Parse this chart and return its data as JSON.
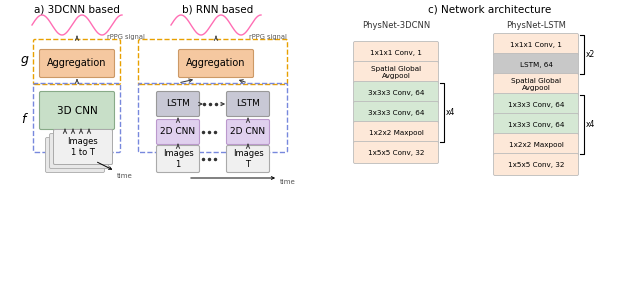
{
  "title_a": "a) 3DCNN based",
  "title_b": "b) RNN based",
  "title_c": "c) Network architecture",
  "color_aggregation": "#f5c8a0",
  "color_aggregation_edge": "#cc9966",
  "color_3dcnn": "#c8dfc8",
  "color_3dcnn_edge": "#88aa88",
  "color_lstm_box": "#c8c8d5",
  "color_2dcnn": "#e0d0ee",
  "color_2dcnn_edge": "#bb99cc",
  "color_images": "#f0f0f0",
  "color_images_edge": "#aaaaaa",
  "color_wave": "#ff6eb4",
  "color_g_dashed": "#E8A000",
  "color_f_dashed": "#7788dd",
  "color_layer_pink": "#fde8d8",
  "color_layer_green": "#d5e8d4",
  "color_layer_gray": "#c8c8c8",
  "bg_color": "#ffffff",
  "layers_3dcnn": [
    {
      "text": "1x1x1 Conv, 1",
      "color": "#fde8d8"
    },
    {
      "text": "Spatial Global\nAvgpool",
      "color": "#fde8d8"
    },
    {
      "text": "3x3x3 Conv, 64",
      "color": "#d5e8d4"
    },
    {
      "text": "3x3x3 Conv, 64",
      "color": "#d5e8d4"
    },
    {
      "text": "1x2x2 Maxpool",
      "color": "#fde8d8"
    },
    {
      "text": "1x5x5 Conv, 32",
      "color": "#fde8d8"
    }
  ],
  "layers_lstm": [
    {
      "text": "1x1x1 Conv, 1",
      "color": "#fde8d8"
    },
    {
      "text": "LSTM, 64",
      "color": "#c8c8c8"
    },
    {
      "text": "Spatial Global\nAvgpool",
      "color": "#fde8d8"
    },
    {
      "text": "1x3x3 Conv, 64",
      "color": "#d5e8d4"
    },
    {
      "text": "1x3x3 Conv, 64",
      "color": "#d5e8d4"
    },
    {
      "text": "1x2x2 Maxpool",
      "color": "#fde8d8"
    },
    {
      "text": "1x5x5 Conv, 32",
      "color": "#fde8d8"
    }
  ]
}
